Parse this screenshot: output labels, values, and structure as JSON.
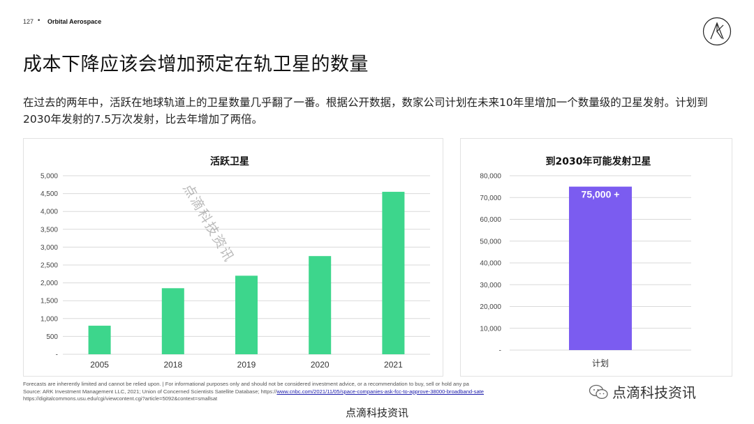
{
  "header": {
    "page_number": "127",
    "brand": "Orbital Aerospace"
  },
  "slide": {
    "title": "成本下降应该会增加预定在轨卫星的数量",
    "intro": "在过去的两年中，活跃在地球轨道上的卫星数量几乎翻了一番。根据公开数据，数家公司计划在未来10年里增加一个数量级的卫星发射。计划到2030年发射的7.5万次发射，比去年增加了两倍。"
  },
  "chart_data": [
    {
      "type": "bar",
      "title": "活跃卫星",
      "categories": [
        "2005",
        "2018",
        "2019",
        "2020",
        "2021"
      ],
      "values": [
        800,
        1850,
        2200,
        2750,
        4550
      ],
      "y_ticks": [
        "-",
        "500",
        "1,000",
        "1,500",
        "2,000",
        "2,500",
        "3,000",
        "3,500",
        "4,000",
        "4,500",
        "5,000"
      ],
      "ylim": [
        0,
        5000
      ],
      "grid": true,
      "color": "#3dd68c"
    },
    {
      "type": "bar",
      "title": "到2030年可能发射卫星",
      "categories": [
        "计划"
      ],
      "values": [
        75000
      ],
      "data_label": "75,000 +",
      "y_ticks": [
        "-",
        "10,000",
        "20,000",
        "30,000",
        "40,000",
        "50,000",
        "60,000",
        "70,000",
        "80,000"
      ],
      "ylim": [
        0,
        80000
      ],
      "grid": true,
      "color": "#7b5cf0"
    }
  ],
  "footnote": {
    "line1": "Forecasts are inherently limited and cannot be relied upon. | For informational purposes only and should not be considered investment advice, or a recommendation to buy, sell or hold any pa",
    "line2_prefix": "Source: ARK Investment Management LLC, 2021; Union of Concerned Scientists Satellite Database; https://",
    "link": "www.cnbc.com/2021/11/05/space-companies-ask-fcc-to-approve-38000-broadband-sate",
    "line3": "https://digitalcommons.usu.edu/cgi/viewcontent.cgi?article=5092&context=smallsat"
  },
  "watermarks": {
    "diagonal": "点滴科技资讯",
    "wechat": "点滴科技资讯",
    "bottom": "点滴科技资讯"
  }
}
